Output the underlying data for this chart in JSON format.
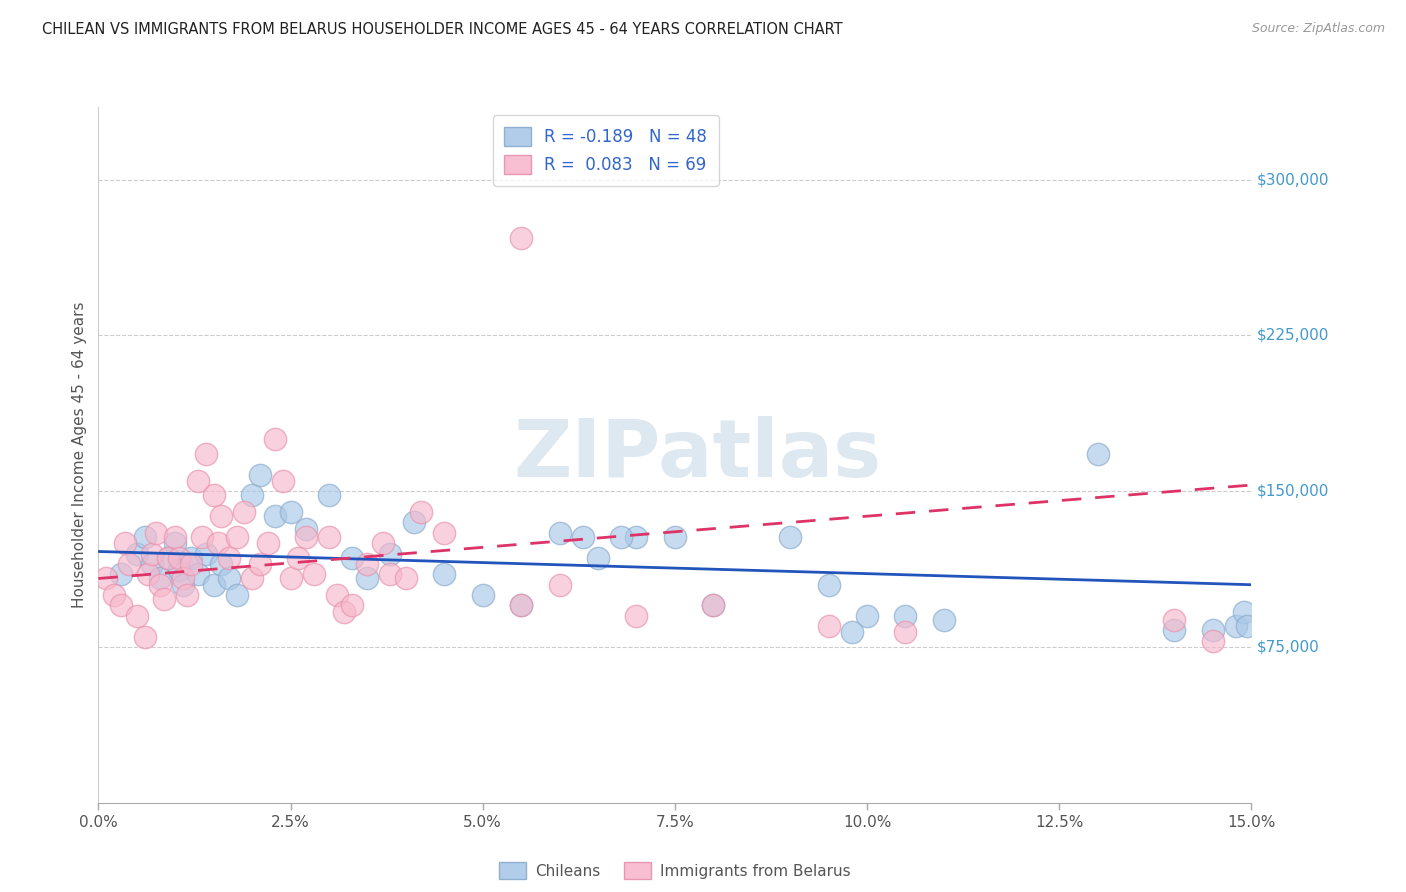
{
  "title": "CHILEAN VS IMMIGRANTS FROM BELARUS HOUSEHOLDER INCOME AGES 45 - 64 YEARS CORRELATION CHART",
  "source": "Source: ZipAtlas.com",
  "ylabel": "Householder Income Ages 45 - 64 years",
  "xlabel_vals": [
    0.0,
    2.5,
    5.0,
    7.5,
    10.0,
    12.5,
    15.0
  ],
  "ytick_labels": [
    "$75,000",
    "$150,000",
    "$225,000",
    "$300,000"
  ],
  "ytick_vals": [
    75000,
    150000,
    225000,
    300000
  ],
  "xlim": [
    0.0,
    15.0
  ],
  "ylim": [
    0,
    335000
  ],
  "blue_color": "#aac8e8",
  "pink_color": "#f7b8cc",
  "blue_scatter_edge": "#88aacc",
  "pink_scatter_edge": "#e890aa",
  "blue_line_color": "#2255bb",
  "pink_line_color": "#dd3366",
  "title_color": "#222222",
  "source_color": "#999999",
  "axis_label_color": "#555555",
  "xtick_color": "#555555",
  "ytick_color": "#4499cc",
  "watermark_text": "ZIPatlas",
  "watermark_color": "#dde8f0",
  "legend_text_color": "#3366cc",
  "legend_label1": "Chileans",
  "legend_label2": "Immigrants from Belarus",
  "legend_label_color": "#555555",
  "blue_line_x0": 0.0,
  "blue_line_x1": 15.0,
  "blue_line_y0": 121000,
  "blue_line_y1": 105000,
  "pink_line_x0": 0.0,
  "pink_line_x1": 15.0,
  "pink_line_y0": 108000,
  "pink_line_y1": 153000,
  "blue_scatter_x": [
    0.3,
    0.5,
    0.6,
    0.7,
    0.8,
    0.9,
    1.0,
    1.05,
    1.1,
    1.2,
    1.3,
    1.4,
    1.5,
    1.6,
    1.7,
    1.8,
    2.0,
    2.1,
    2.3,
    2.5,
    2.7,
    3.0,
    3.3,
    3.5,
    3.8,
    4.1,
    4.5,
    5.0,
    5.5,
    6.0,
    6.5,
    7.0,
    7.5,
    8.0,
    9.0,
    9.5,
    10.0,
    10.5,
    13.0,
    14.0,
    14.5,
    14.8,
    14.9,
    14.95,
    9.8,
    11.0,
    6.3,
    6.8
  ],
  "blue_scatter_y": [
    110000,
    120000,
    128000,
    115000,
    108000,
    118000,
    125000,
    112000,
    105000,
    118000,
    110000,
    120000,
    105000,
    115000,
    108000,
    100000,
    148000,
    158000,
    138000,
    140000,
    132000,
    148000,
    118000,
    108000,
    120000,
    135000,
    110000,
    100000,
    95000,
    130000,
    118000,
    128000,
    128000,
    95000,
    128000,
    105000,
    90000,
    90000,
    168000,
    83000,
    83000,
    85000,
    92000,
    85000,
    82000,
    88000,
    128000,
    128000
  ],
  "pink_scatter_x": [
    0.1,
    0.2,
    0.3,
    0.35,
    0.4,
    0.5,
    0.6,
    0.65,
    0.7,
    0.75,
    0.8,
    0.85,
    0.9,
    1.0,
    1.05,
    1.1,
    1.15,
    1.2,
    1.3,
    1.35,
    1.4,
    1.5,
    1.55,
    1.6,
    1.7,
    1.8,
    1.9,
    2.0,
    2.1,
    2.2,
    2.3,
    2.4,
    2.5,
    2.6,
    2.7,
    2.8,
    3.0,
    3.1,
    3.2,
    3.3,
    3.5,
    3.7,
    3.8,
    4.0,
    4.2,
    4.5,
    5.5,
    6.0,
    7.0,
    8.0,
    9.5,
    10.5,
    5.5,
    14.0,
    14.5
  ],
  "pink_scatter_y": [
    108000,
    100000,
    95000,
    125000,
    115000,
    90000,
    80000,
    110000,
    120000,
    130000,
    105000,
    98000,
    118000,
    128000,
    118000,
    108000,
    100000,
    115000,
    155000,
    128000,
    168000,
    148000,
    125000,
    138000,
    118000,
    128000,
    140000,
    108000,
    115000,
    125000,
    175000,
    155000,
    108000,
    118000,
    128000,
    110000,
    128000,
    100000,
    92000,
    95000,
    115000,
    125000,
    110000,
    108000,
    140000,
    130000,
    95000,
    105000,
    90000,
    95000,
    85000,
    82000,
    272000,
    88000,
    78000
  ]
}
